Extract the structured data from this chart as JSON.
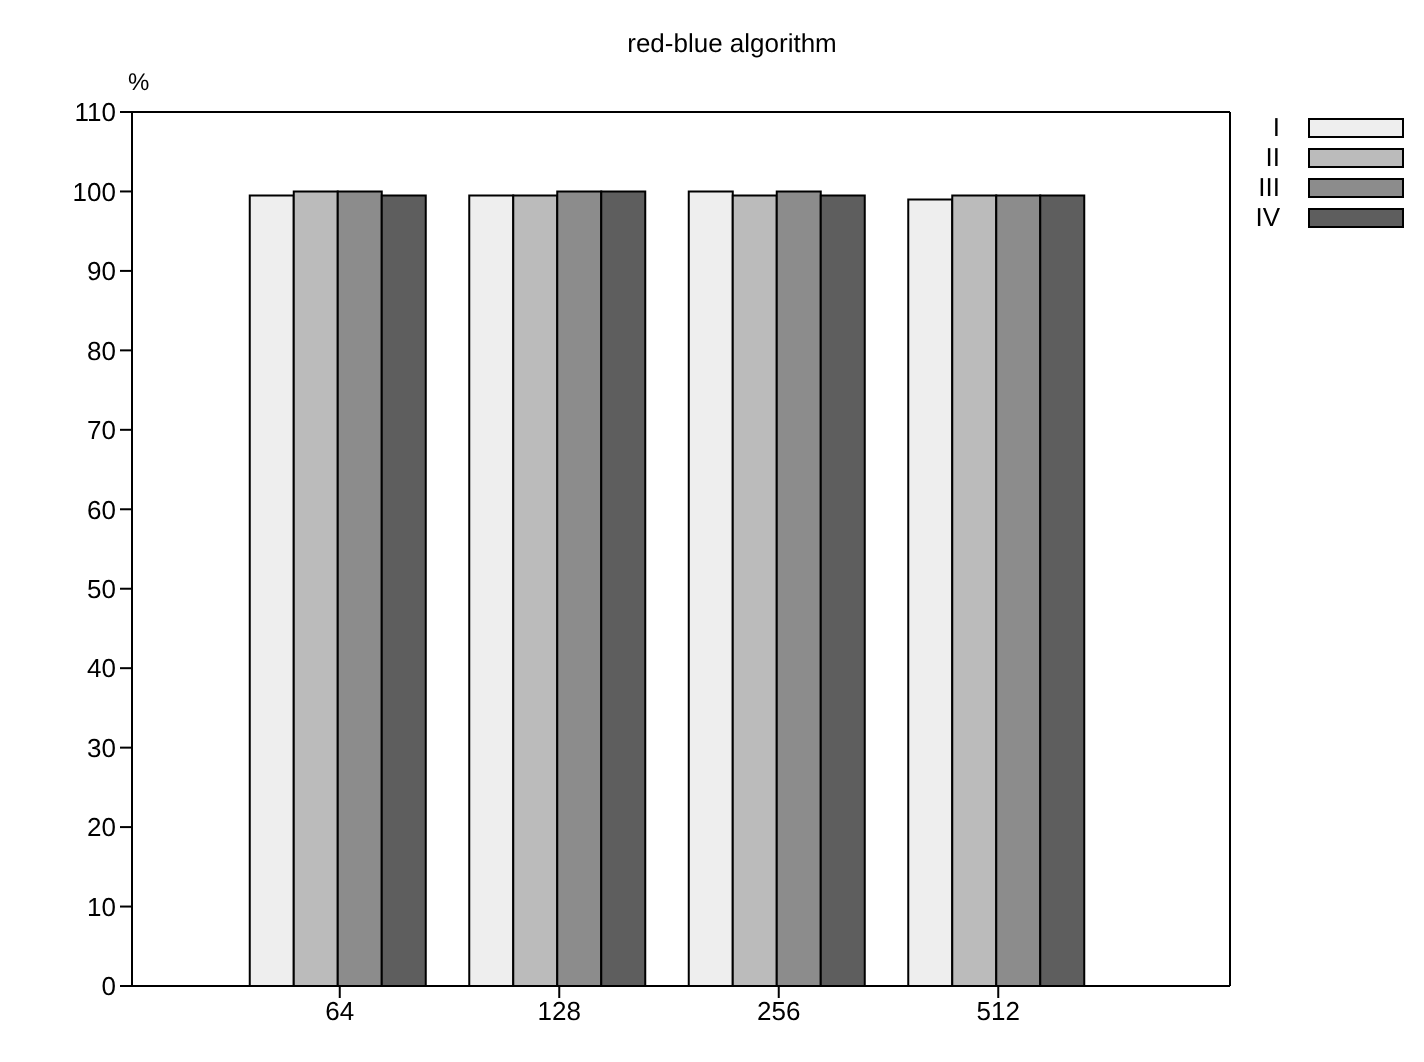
{
  "chart_data": {
    "type": "bar",
    "title": "red-blue algorithm",
    "ylabel": "%",
    "categories": [
      "64",
      "128",
      "256",
      "512"
    ],
    "series": [
      {
        "name": "I",
        "color": "#eeeeee",
        "values": [
          99.5,
          99.5,
          100,
          99
        ]
      },
      {
        "name": "II",
        "color": "#bbbbbb",
        "values": [
          100,
          99.5,
          99.5,
          99.5
        ]
      },
      {
        "name": "III",
        "color": "#8c8c8c",
        "values": [
          100,
          100,
          100,
          99.5
        ]
      },
      {
        "name": "IV",
        "color": "#5e5e5e",
        "values": [
          99.5,
          100,
          99.5,
          99.5
        ]
      }
    ],
    "ylim": [
      0,
      110
    ],
    "yticks": [
      0,
      10,
      20,
      30,
      40,
      50,
      60,
      70,
      80,
      90,
      100,
      110
    ],
    "grid": false,
    "legend": "top right"
  }
}
